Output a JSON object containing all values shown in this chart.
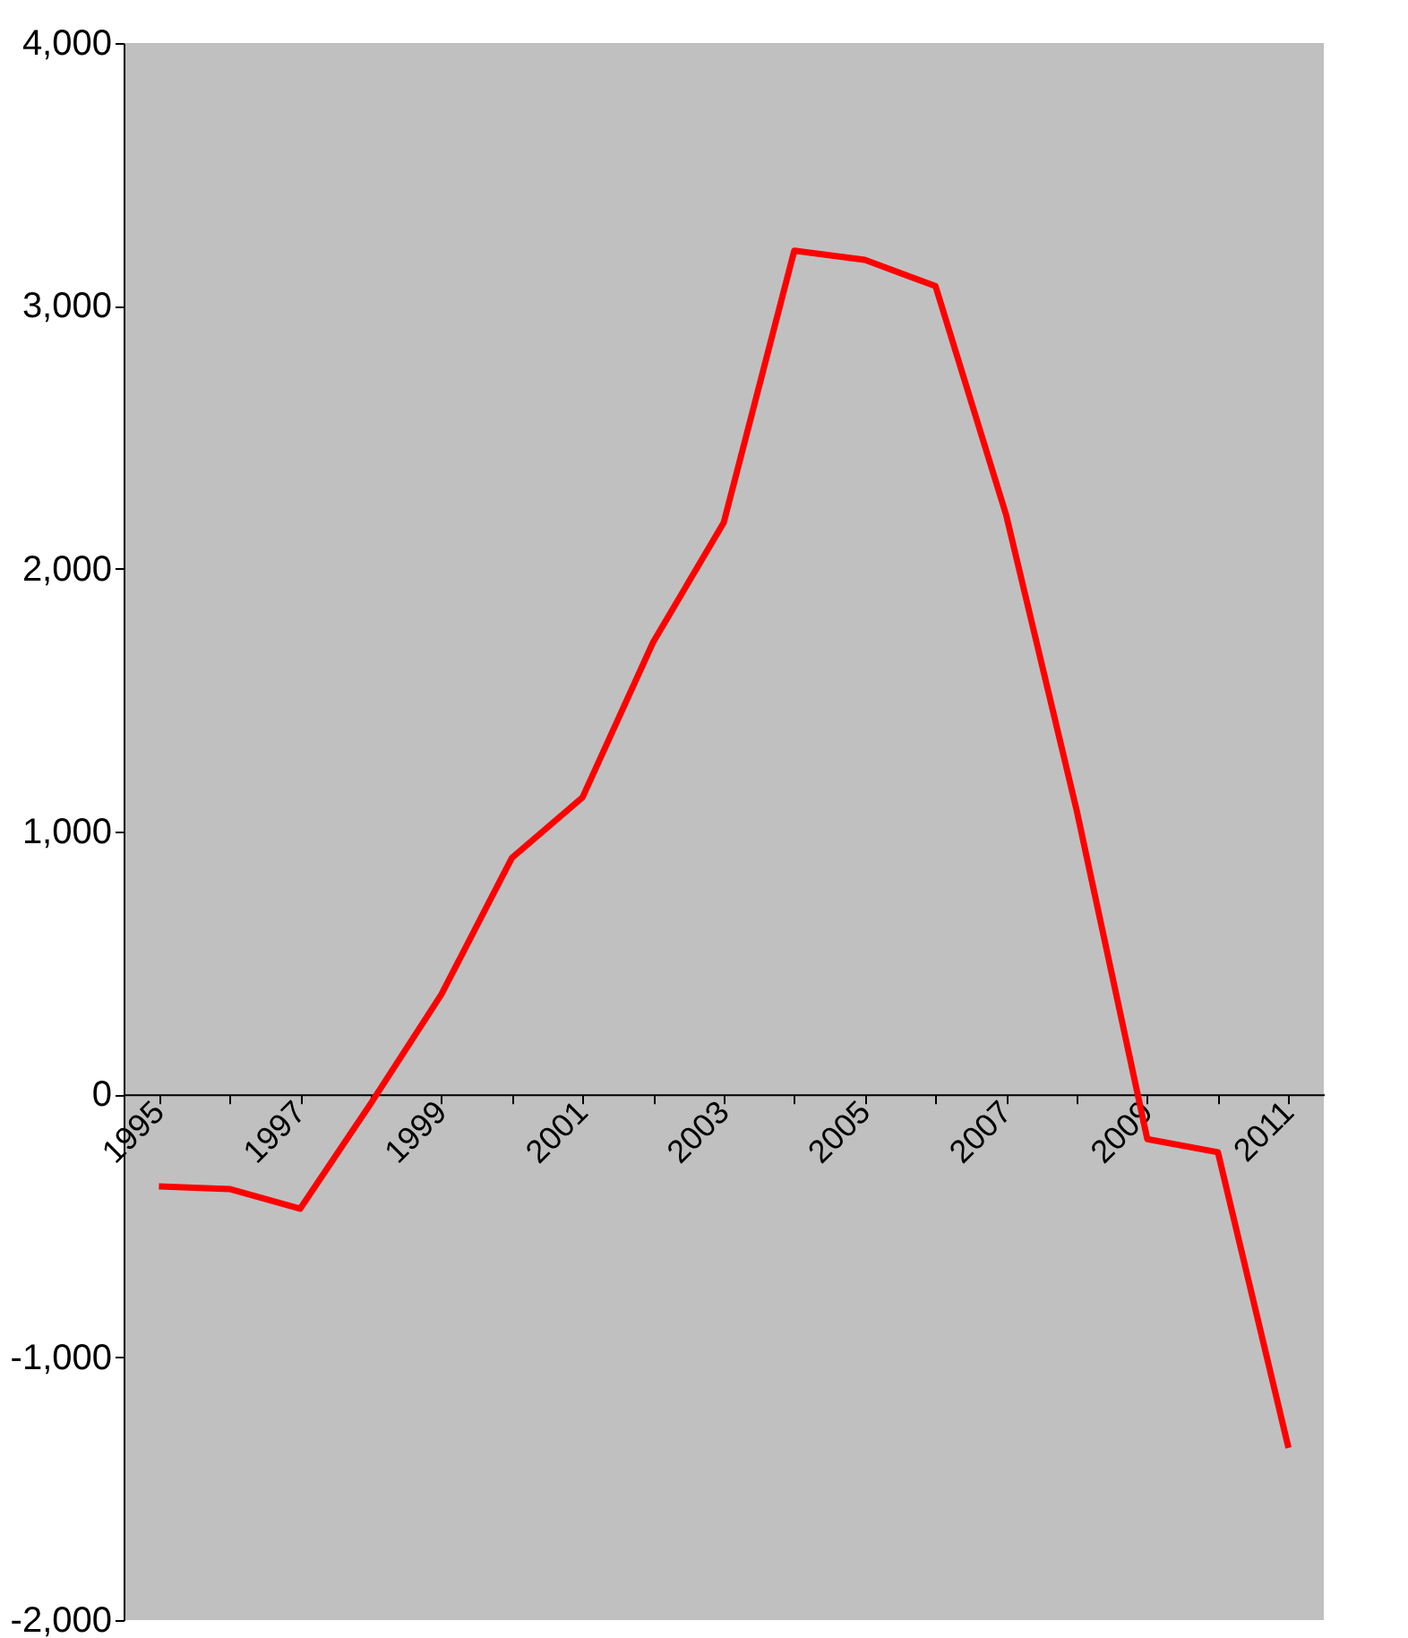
{
  "chart_data": {
    "type": "line",
    "categories": [
      "1995",
      null,
      "1997",
      null,
      "1999",
      null,
      "2001",
      null,
      "2003",
      null,
      "2005",
      null,
      "2007",
      null,
      "2009",
      null,
      "2011"
    ],
    "series": [
      {
        "color": "#ff0000",
        "values": [
          -350,
          -360,
          -435,
          -35,
          380,
          900,
          1130,
          1720,
          2175,
          3210,
          3175,
          3075,
          2205,
          1080,
          -170,
          -220,
          -1345
        ]
      }
    ],
    "ylim": [
      -2000,
      4000
    ],
    "yticks": [
      {
        "value": -2000,
        "label": "-2,000"
      },
      {
        "value": -1000,
        "label": "-1,000"
      },
      0,
      {
        "value": 1000,
        "label": "1,000"
      },
      {
        "value": 2000,
        "label": "2,000"
      },
      {
        "value": 3000,
        "label": "3,000"
      },
      {
        "value": 4000,
        "label": "4,000"
      }
    ],
    "grid": false,
    "legend": false,
    "marker": "none",
    "line_style": "solid"
  }
}
